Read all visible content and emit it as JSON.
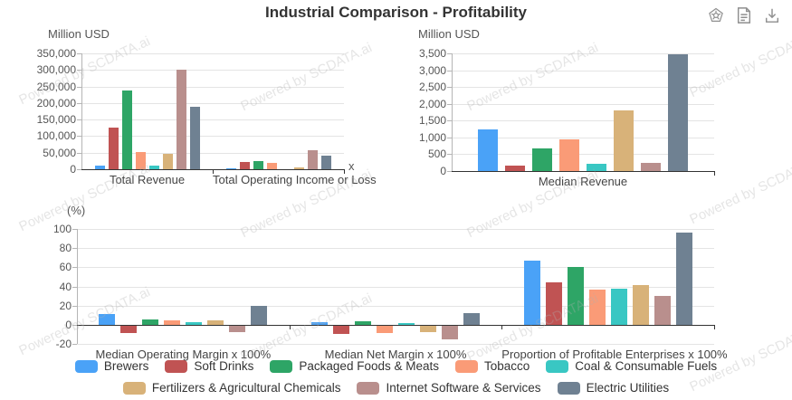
{
  "title": "Industrial Comparison - Profitability",
  "toolbar": {
    "icons": [
      "badge-icon",
      "report-icon",
      "download-icon"
    ]
  },
  "watermark": {
    "text": "Powered by SCDATA.ai"
  },
  "legend": [
    {
      "label": "Brewers",
      "color": "#4AA2F7"
    },
    {
      "label": "Soft Drinks",
      "color": "#C05353"
    },
    {
      "label": "Packaged Foods & Meats",
      "color": "#2EA566"
    },
    {
      "label": "Tobacco",
      "color": "#FA9B77"
    },
    {
      "label": "Coal & Consumable Fuels",
      "color": "#39C7C3"
    },
    {
      "label": "Fertilizers & Agricultural Chemicals",
      "color": "#D8B279"
    },
    {
      "label": "Internet Software & Services",
      "color": "#B98F8D"
    },
    {
      "label": "Electric Utilities",
      "color": "#6F8192"
    }
  ],
  "chart_data": [
    {
      "type": "bar",
      "unit_label": "Million USD",
      "axis_name": "x",
      "ylim": [
        0,
        350000
      ],
      "ystep": 50000,
      "grid": true,
      "legend_position": "bottom",
      "categories": [
        "Total Revenue",
        "Total Operating Income or Loss"
      ],
      "series": [
        {
          "name": "Brewers",
          "values": [
            10000,
            3000
          ]
        },
        {
          "name": "Soft Drinks",
          "values": [
            125000,
            22000
          ]
        },
        {
          "name": "Packaged Foods & Meats",
          "values": [
            237000,
            25000
          ]
        },
        {
          "name": "Tobacco",
          "values": [
            52000,
            20000
          ]
        },
        {
          "name": "Coal & Consumable Fuels",
          "values": [
            11000,
            1500
          ]
        },
        {
          "name": "Fertilizers & Agricultural Chemicals",
          "values": [
            47000,
            6000
          ]
        },
        {
          "name": "Internet Software & Services",
          "values": [
            302000,
            57000
          ]
        },
        {
          "name": "Electric Utilities",
          "values": [
            190000,
            40000
          ]
        }
      ]
    },
    {
      "type": "bar",
      "unit_label": "Million USD",
      "axis_name": "",
      "ylim": [
        0,
        3500
      ],
      "ystep": 500,
      "grid": true,
      "legend_position": "bottom",
      "categories": [
        "Median Revenue"
      ],
      "series": [
        {
          "name": "Brewers",
          "values": [
            1250
          ]
        },
        {
          "name": "Soft Drinks",
          "values": [
            160
          ]
        },
        {
          "name": "Packaged Foods & Meats",
          "values": [
            680
          ]
        },
        {
          "name": "Tobacco",
          "values": [
            950
          ]
        },
        {
          "name": "Coal & Consumable Fuels",
          "values": [
            210
          ]
        },
        {
          "name": "Fertilizers & Agricultural Chemicals",
          "values": [
            1800
          ]
        },
        {
          "name": "Internet Software & Services",
          "values": [
            250
          ]
        },
        {
          "name": "Electric Utilities",
          "values": [
            3480
          ]
        }
      ]
    },
    {
      "type": "bar",
      "unit_label": "(%)",
      "axis_name": "",
      "ylim": [
        -20,
        100
      ],
      "ystep": 20,
      "grid": true,
      "legend_position": "bottom",
      "categories": [
        "Median Operating Margin x 100%",
        "Median Net Margin x 100%",
        "Proportion of Profitable Enterprises x 100%"
      ],
      "series": [
        {
          "name": "Brewers",
          "values": [
            11,
            2.5,
            67
          ]
        },
        {
          "name": "Soft Drinks",
          "values": [
            -9,
            -10,
            44
          ]
        },
        {
          "name": "Packaged Foods & Meats",
          "values": [
            5.5,
            4,
            60
          ]
        },
        {
          "name": "Tobacco",
          "values": [
            5,
            -9,
            37
          ]
        },
        {
          "name": "Coal & Consumable Fuels",
          "values": [
            3,
            1.5,
            38
          ]
        },
        {
          "name": "Fertilizers & Agricultural Chemicals",
          "values": [
            5,
            -8,
            41
          ]
        },
        {
          "name": "Internet Software & Services",
          "values": [
            -8,
            -15,
            30
          ]
        },
        {
          "name": "Electric Utilities",
          "values": [
            20,
            12,
            96
          ]
        }
      ]
    }
  ]
}
